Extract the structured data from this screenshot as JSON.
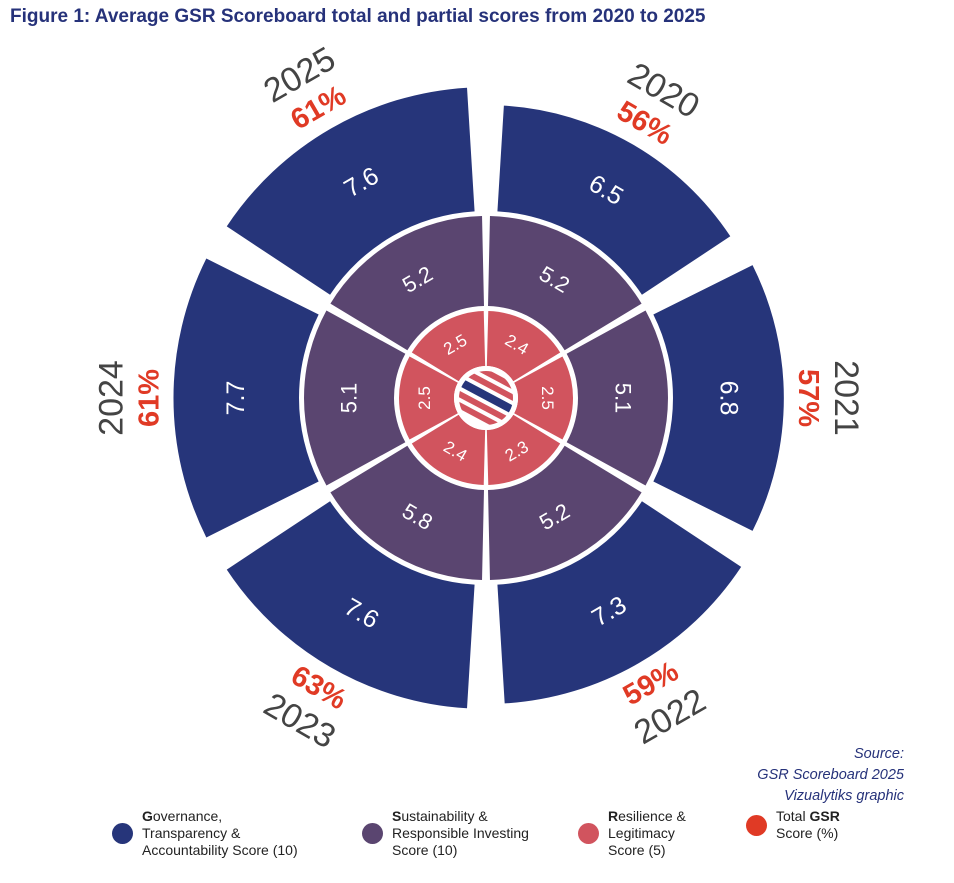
{
  "title": "Figure 1: Average GSR Scoreboard total and partial scores from 2020 to 2025",
  "source": {
    "line1": "Source:",
    "line2": "GSR Scoreboard 2025",
    "line3": "Vizualytiks graphic"
  },
  "colors": {
    "governance": "#26357a",
    "sustainability": "#5a4570",
    "resilience": "#d1545e",
    "total": "#e03a25",
    "year_text": "#444444"
  },
  "legend": [
    {
      "key": "governance",
      "bold": "G",
      "rest": "overnance,\nTransparency &\nAccountability Score (10)"
    },
    {
      "key": "sustainability",
      "bold": "S",
      "rest": "ustainability &\nResponsible Investing\nScore (10)"
    },
    {
      "key": "resilience",
      "bold": "R",
      "rest": "esilience &\nLegitimacy\nScore (5)"
    },
    {
      "key": "total",
      "pre": "Total ",
      "bold": "GSR",
      "rest": "\nScore (%)"
    }
  ],
  "chart_data": {
    "type": "radial-segmented",
    "title": "Figure 1: Average GSR Scoreboard total and partial scores from 2020 to 2025",
    "years": [
      {
        "year": "2020",
        "governance": 6.5,
        "governance_label": "6.5",
        "sustainability": 5.2,
        "sustainability_label": "5.2",
        "resilience": 2.4,
        "resilience_label": "2.4",
        "total_pct": 56,
        "total_label": "56%"
      },
      {
        "year": "2021",
        "governance": 6.8,
        "governance_label": "6.8",
        "sustainability": 5.1,
        "sustainability_label": "5.1",
        "resilience": 2.5,
        "resilience_label": "2.5",
        "total_pct": 57,
        "total_label": "57%"
      },
      {
        "year": "2022",
        "governance": 7.3,
        "governance_label": "7.3",
        "sustainability": 5.2,
        "sustainability_label": "5.2",
        "resilience": 2.3,
        "resilience_label": "2.3",
        "total_pct": 59,
        "total_label": "59%"
      },
      {
        "year": "2023",
        "governance": 7.6,
        "governance_label": "7.6",
        "sustainability": 5.8,
        "sustainability_label": "5.8",
        "resilience": 2.4,
        "resilience_label": "2.4",
        "total_pct": 63,
        "total_label": "63%"
      },
      {
        "year": "2024",
        "governance": 7.7,
        "governance_label": "7.7",
        "sustainability": 5.1,
        "sustainability_label": "5.1",
        "resilience": 2.5,
        "resilience_label": "2.5",
        "total_pct": 61,
        "total_label": "61%"
      },
      {
        "year": "2025",
        "governance": 7.6,
        "governance_label": "7.6",
        "sustainability": 5.2,
        "sustainability_label": "5.2",
        "resilience": 2.5,
        "resilience_label": "2.5",
        "total_pct": 61,
        "total_label": "61%"
      }
    ],
    "scales": {
      "governance_max": 10,
      "sustainability_max": 10,
      "resilience_max": 5
    }
  }
}
